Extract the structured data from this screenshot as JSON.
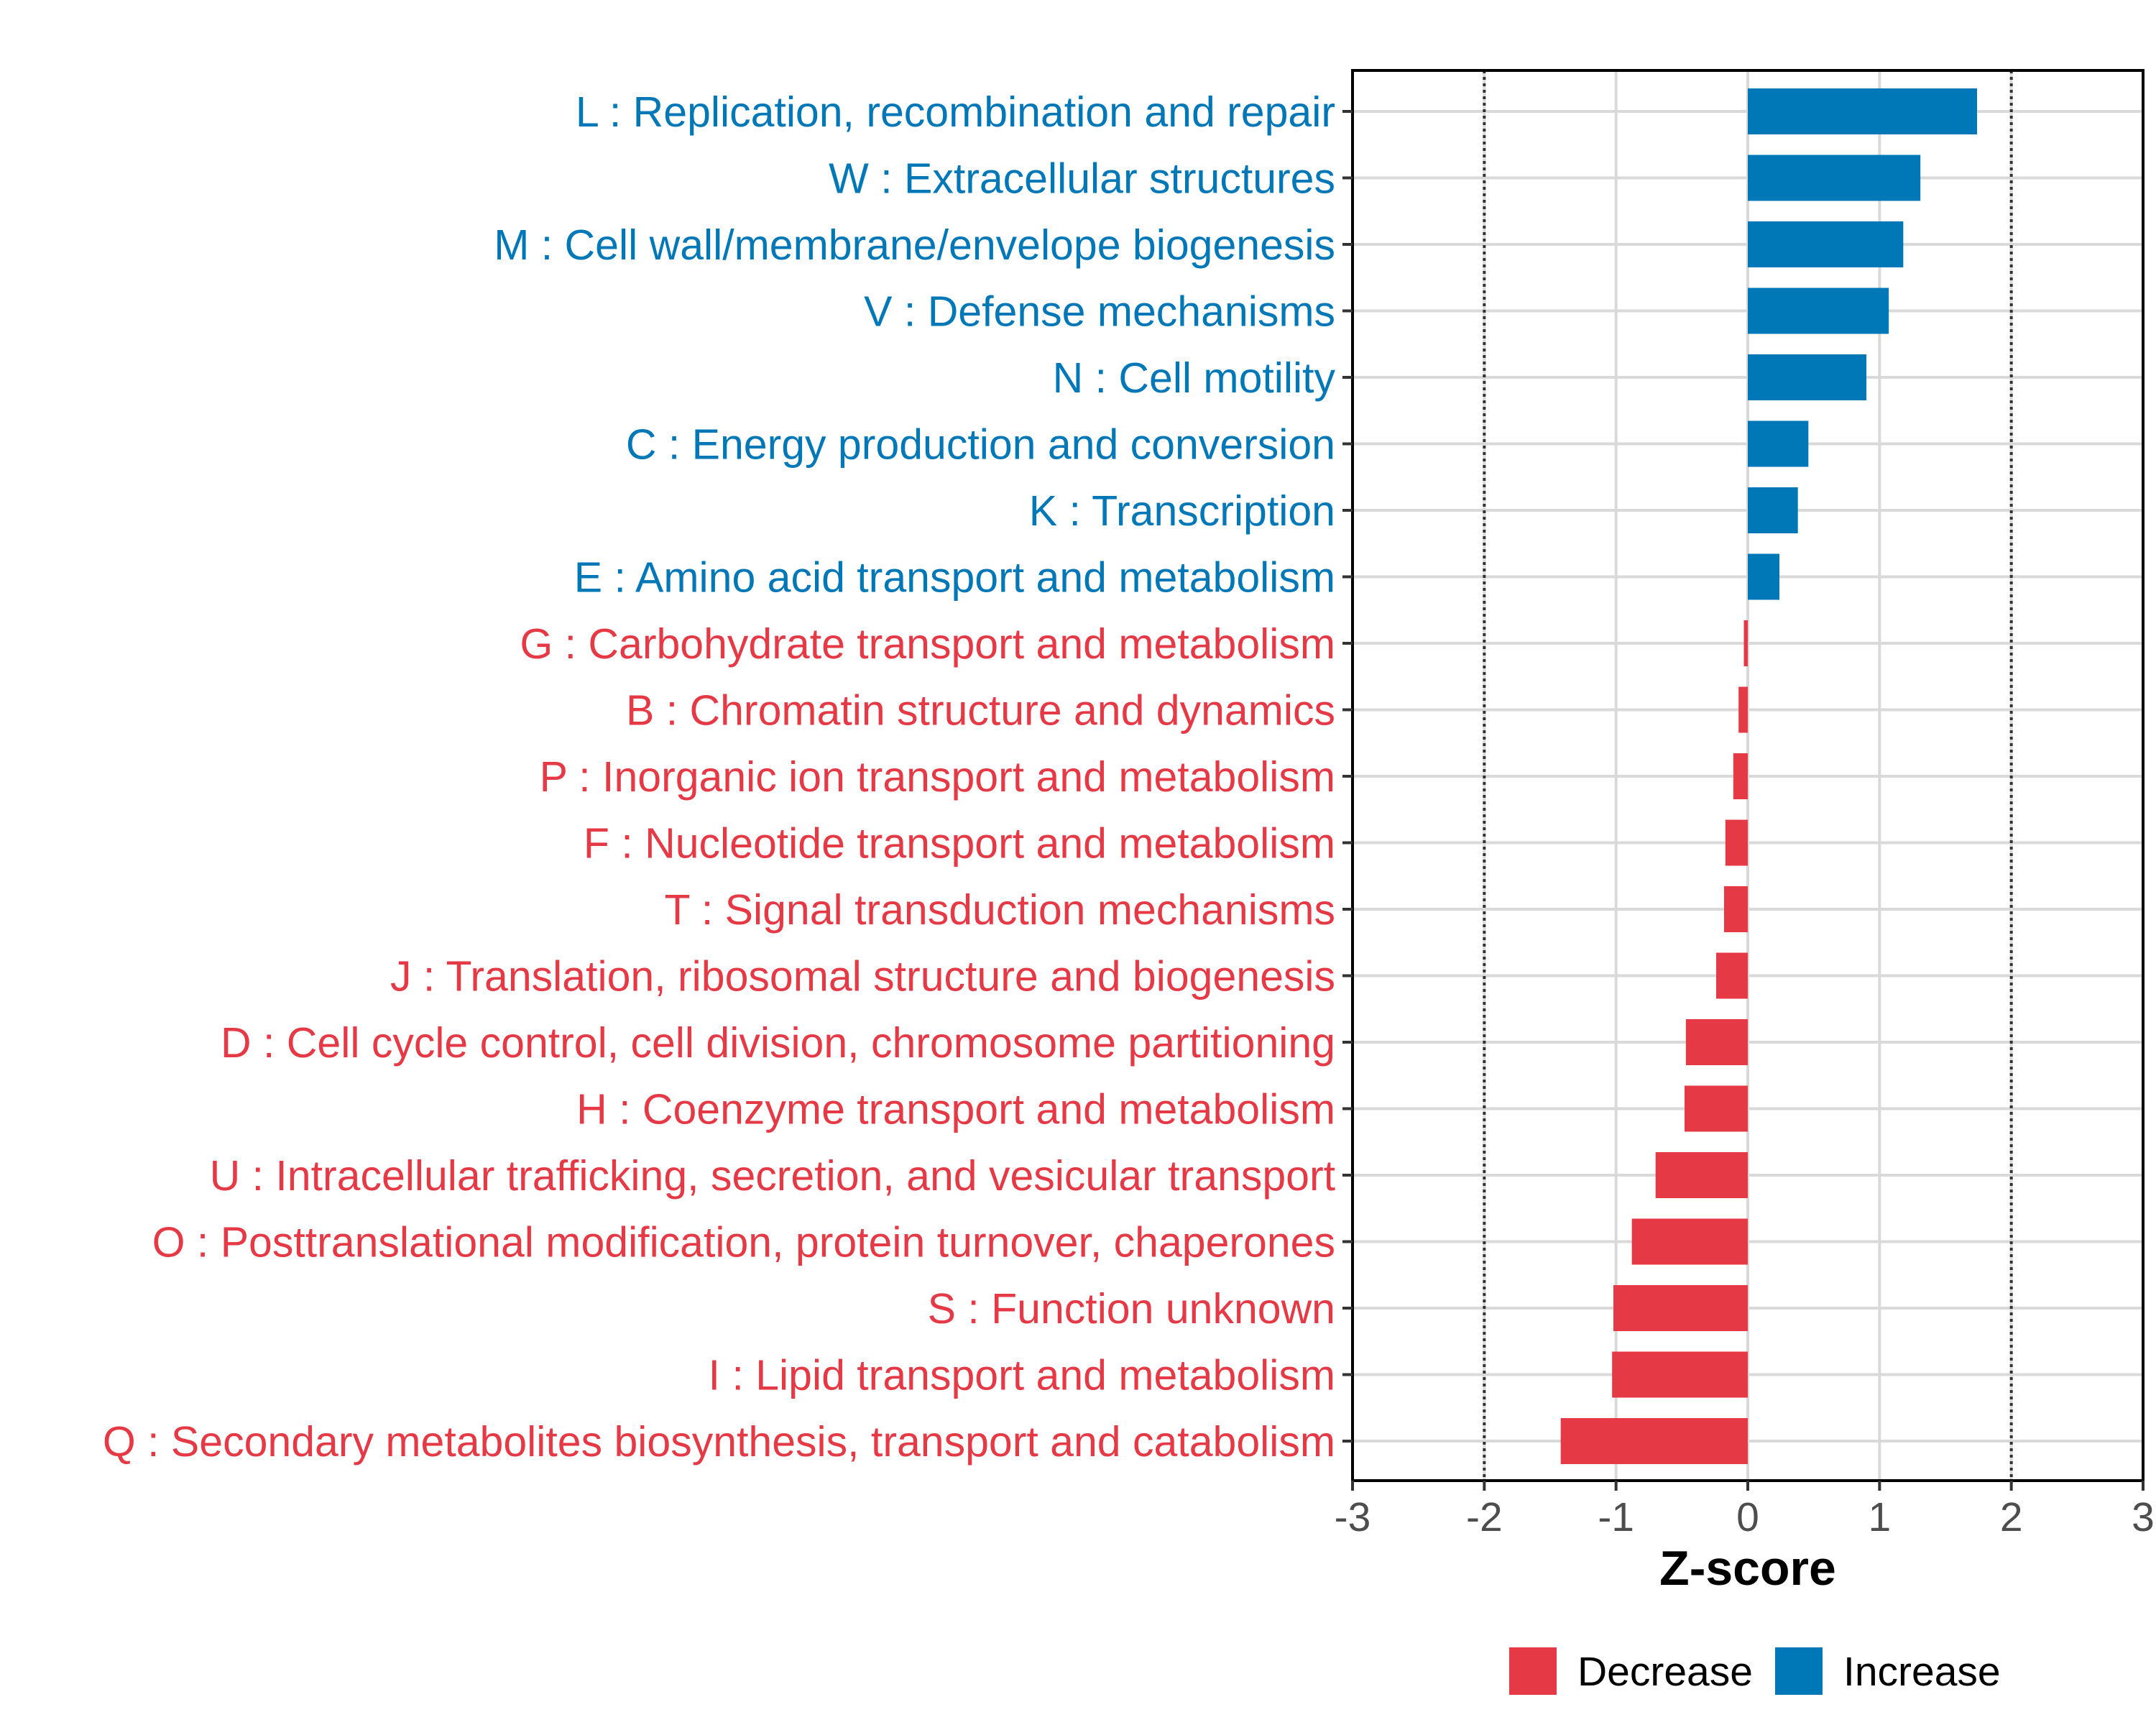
{
  "chart_data": {
    "type": "bar",
    "orientation": "horizontal",
    "title": "",
    "xlabel": "Z-score",
    "ylabel": "",
    "xlim": [
      -3,
      3
    ],
    "xticks": [
      "-3",
      "-2",
      "-1",
      "0",
      "1",
      "2",
      "3"
    ],
    "xtick_values": [
      -3,
      -2,
      -1,
      0,
      1,
      2,
      3
    ],
    "threshold_lines": [
      -2,
      2
    ],
    "grid": true,
    "legend_position": "bottom",
    "legend": [
      {
        "label": "Decrease",
        "color": "#e63946"
      },
      {
        "label": "Increase",
        "color": "#0077b6"
      }
    ],
    "categories": [
      {
        "label": "L : Replication, recombination and repair",
        "value": 1.74,
        "direction": "Increase"
      },
      {
        "label": "W : Extracellular structures",
        "value": 1.31,
        "direction": "Increase"
      },
      {
        "label": "M : Cell wall/membrane/envelope biogenesis",
        "value": 1.18,
        "direction": "Increase"
      },
      {
        "label": "V : Defense mechanisms",
        "value": 1.07,
        "direction": "Increase"
      },
      {
        "label": "N : Cell motility",
        "value": 0.9,
        "direction": "Increase"
      },
      {
        "label": "C : Energy production and conversion",
        "value": 0.46,
        "direction": "Increase"
      },
      {
        "label": "K : Transcription",
        "value": 0.38,
        "direction": "Increase"
      },
      {
        "label": "E : Amino acid transport and metabolism",
        "value": 0.24,
        "direction": "Increase"
      },
      {
        "label": "G : Carbohydrate transport and metabolism",
        "value": -0.03,
        "direction": "Decrease"
      },
      {
        "label": "B : Chromatin structure and dynamics",
        "value": -0.07,
        "direction": "Decrease"
      },
      {
        "label": "P : Inorganic ion transport and metabolism",
        "value": -0.11,
        "direction": "Decrease"
      },
      {
        "label": "F : Nucleotide transport and metabolism",
        "value": -0.17,
        "direction": "Decrease"
      },
      {
        "label": "T : Signal transduction mechanisms",
        "value": -0.18,
        "direction": "Decrease"
      },
      {
        "label": "J : Translation, ribosomal structure and biogenesis",
        "value": -0.24,
        "direction": "Decrease"
      },
      {
        "label": "D : Cell cycle control, cell division, chromosome partitioning",
        "value": -0.47,
        "direction": "Decrease"
      },
      {
        "label": "H : Coenzyme transport and metabolism",
        "value": -0.48,
        "direction": "Decrease"
      },
      {
        "label": "U : Intracellular trafficking, secretion, and vesicular transport",
        "value": -0.7,
        "direction": "Decrease"
      },
      {
        "label": "O : Posttranslational modification, protein turnover, chaperones",
        "value": -0.88,
        "direction": "Decrease"
      },
      {
        "label": "S : Function unknown",
        "value": -1.02,
        "direction": "Decrease"
      },
      {
        "label": "I : Lipid transport and metabolism",
        "value": -1.03,
        "direction": "Decrease"
      },
      {
        "label": "Q : Secondary metabolites biosynthesis, transport and catabolism",
        "value": -1.42,
        "direction": "Decrease"
      }
    ]
  }
}
